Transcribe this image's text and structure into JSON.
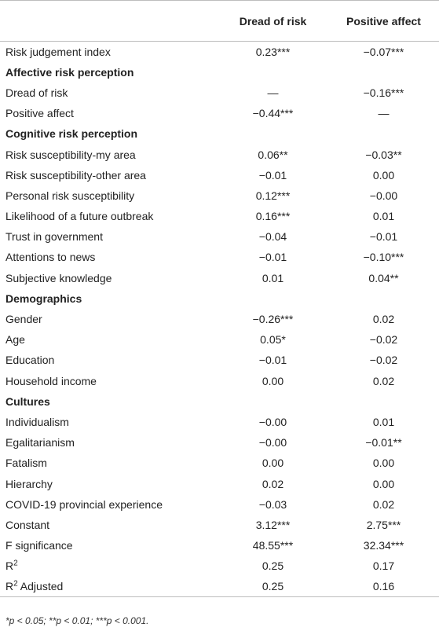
{
  "table": {
    "columns": [
      "",
      "Dread of risk",
      "Positive affect"
    ],
    "rows": [
      {
        "label": "Risk judgement index",
        "section": false,
        "dread": "0.23***",
        "positive": "−0.07***"
      },
      {
        "label": "Affective risk perception",
        "section": true,
        "dread": "",
        "positive": ""
      },
      {
        "label": "Dread of risk",
        "section": false,
        "dread": "—",
        "positive": "−0.16***"
      },
      {
        "label": "Positive affect",
        "section": false,
        "dread": "−0.44***",
        "positive": "—"
      },
      {
        "label": "Cognitive risk perception",
        "section": true,
        "dread": "",
        "positive": ""
      },
      {
        "label": "Risk susceptibility-my area",
        "section": false,
        "dread": "0.06**",
        "positive": "−0.03**"
      },
      {
        "label": "Risk susceptibility-other area",
        "section": false,
        "dread": "−0.01",
        "positive": "0.00"
      },
      {
        "label": "Personal risk susceptibility",
        "section": false,
        "dread": "0.12***",
        "positive": "−0.00"
      },
      {
        "label": "Likelihood of a future outbreak",
        "section": false,
        "dread": "0.16***",
        "positive": "0.01"
      },
      {
        "label": "Trust in government",
        "section": false,
        "dread": "−0.04",
        "positive": "−0.01"
      },
      {
        "label": "Attentions to news",
        "section": false,
        "dread": "−0.01",
        "positive": "−0.10***"
      },
      {
        "label": "Subjective knowledge",
        "section": false,
        "dread": "0.01",
        "positive": "0.04**"
      },
      {
        "label": "Demographics",
        "section": true,
        "dread": "",
        "positive": ""
      },
      {
        "label": "Gender",
        "section": false,
        "dread": "−0.26***",
        "positive": "0.02"
      },
      {
        "label": "Age",
        "section": false,
        "dread": "0.05*",
        "positive": "−0.02"
      },
      {
        "label": "Education",
        "section": false,
        "dread": "−0.01",
        "positive": "−0.02"
      },
      {
        "label": "Household income",
        "section": false,
        "dread": "0.00",
        "positive": "0.02"
      },
      {
        "label": "Cultures",
        "section": true,
        "dread": "",
        "positive": ""
      },
      {
        "label": "Individualism",
        "section": false,
        "dread": "−0.00",
        "positive": "0.01"
      },
      {
        "label": "Egalitarianism",
        "section": false,
        "dread": "−0.00",
        "positive": "−0.01**"
      },
      {
        "label": "Fatalism",
        "section": false,
        "dread": "0.00",
        "positive": "0.00"
      },
      {
        "label": "Hierarchy",
        "section": false,
        "dread": "0.02",
        "positive": "0.00"
      },
      {
        "label": "COVID-19 provincial experience",
        "section": false,
        "dread": "−0.03",
        "positive": "0.02"
      },
      {
        "label": "Constant",
        "section": false,
        "dread": "3.12***",
        "positive": "2.75***"
      },
      {
        "label": "F significance",
        "section": false,
        "dread": "48.55***",
        "positive": "32.34***"
      },
      {
        "label": "R",
        "sup": "2",
        "section": false,
        "dread": "0.25",
        "positive": "0.17"
      },
      {
        "label": "R",
        "sup": "2",
        "label_suffix": " Adjusted",
        "section": false,
        "dread": "0.25",
        "positive": "0.16"
      }
    ]
  },
  "footnote": "*p < 0.05; **p < 0.01; ***p < 0.001."
}
